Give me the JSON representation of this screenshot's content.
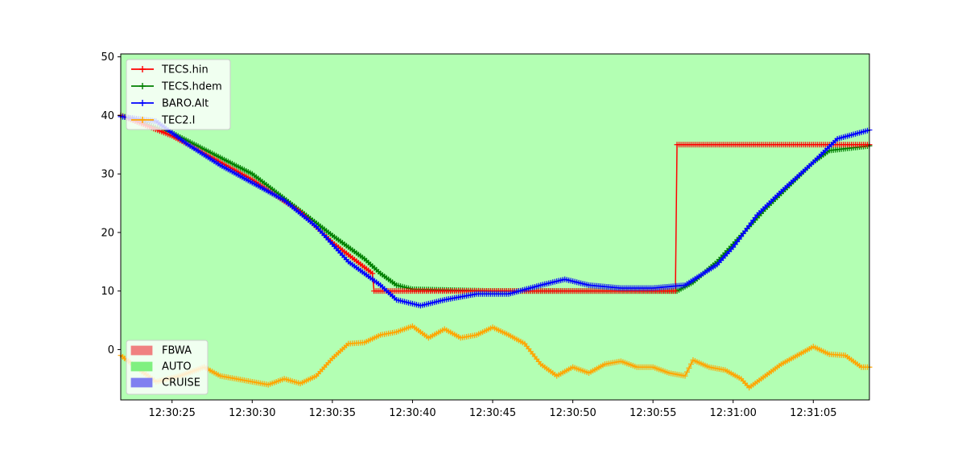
{
  "chart_data": {
    "type": "line",
    "title": "",
    "xlabel": "",
    "ylabel": "",
    "xlim": [
      "12:30:21.8",
      "12:31:08.5"
    ],
    "ylim": [
      -8.6,
      50.5
    ],
    "background_mode_band": {
      "mode": "AUTO",
      "color": "#b3ffb3"
    },
    "x_tick_labels": [
      "12:30:25",
      "12:30:30",
      "12:30:35",
      "12:30:40",
      "12:30:45",
      "12:30:50",
      "12:30:55",
      "12:31:00",
      "12:31:05"
    ],
    "y_tick_labels": [
      "0",
      "10",
      "20",
      "30",
      "40",
      "50"
    ],
    "grid": false,
    "legend_series": {
      "placement": "upper-left",
      "entries": [
        "TECS.hin",
        "TECS.hdem",
        "BARO.Alt",
        "TEC2.I"
      ]
    },
    "legend_modes": {
      "placement": "lower-left",
      "entries": [
        {
          "label": "FBWA",
          "color": "#f08080"
        },
        {
          "label": "AUTO",
          "color": "#80f080"
        },
        {
          "label": "CRUISE",
          "color": "#8080f0"
        }
      ]
    },
    "series": [
      {
        "name": "TECS.hin",
        "color": "#ff0000",
        "marker": "+",
        "points": [
          [
            "12:30:21.8",
            40.0
          ],
          [
            "12:30:25",
            36.5
          ],
          [
            "12:30:30",
            29.0
          ],
          [
            "12:30:33",
            23.5
          ],
          [
            "12:30:35",
            18.3
          ],
          [
            "12:30:37.5",
            13.0
          ],
          [
            "12:30:37.6",
            10.0
          ],
          [
            "12:30:45",
            10.0
          ],
          [
            "12:30:50",
            10.0
          ],
          [
            "12:30:56.4",
            10.0
          ],
          [
            "12:30:56.5",
            35.0
          ],
          [
            "12:31:00",
            35.0
          ],
          [
            "12:31:05",
            35.0
          ],
          [
            "12:31:08.5",
            35.0
          ]
        ]
      },
      {
        "name": "TECS.hdem",
        "color": "#008000",
        "marker": "+",
        "points": [
          [
            "12:30:21.8",
            40.0
          ],
          [
            "12:30:25",
            37.0
          ],
          [
            "12:30:30",
            30.0
          ],
          [
            "12:30:35",
            19.5
          ],
          [
            "12:30:37",
            15.5
          ],
          [
            "12:30:38",
            13.0
          ],
          [
            "12:30:39",
            11.0
          ],
          [
            "12:30:40",
            10.3
          ],
          [
            "12:30:45",
            10.0
          ],
          [
            "12:30:50",
            10.0
          ],
          [
            "12:30:56.5",
            10.0
          ],
          [
            "12:30:57.5",
            11.5
          ],
          [
            "12:30:59",
            15.0
          ],
          [
            "12:31:02",
            24.0
          ],
          [
            "12:31:05",
            32.0
          ],
          [
            "12:31:06",
            34.0
          ],
          [
            "12:31:08.5",
            34.8
          ]
        ]
      },
      {
        "name": "BARO.Alt",
        "color": "#0000ff",
        "marker": "+",
        "points": [
          [
            "12:30:21.8",
            39.8
          ],
          [
            "12:30:24",
            39.0
          ],
          [
            "12:30:26",
            35.0
          ],
          [
            "12:30:28",
            31.5
          ],
          [
            "12:30:30",
            28.5
          ],
          [
            "12:30:32",
            25.5
          ],
          [
            "12:30:34",
            21.0
          ],
          [
            "12:30:35",
            18.0
          ],
          [
            "12:30:36",
            15.0
          ],
          [
            "12:30:37",
            13.0
          ],
          [
            "12:30:38",
            11.0
          ],
          [
            "12:30:39",
            8.5
          ],
          [
            "12:30:40.5",
            7.5
          ],
          [
            "12:30:42",
            8.5
          ],
          [
            "12:30:44",
            9.5
          ],
          [
            "12:30:46",
            9.5
          ],
          [
            "12:30:48",
            11.0
          ],
          [
            "12:30:49.5",
            12.0
          ],
          [
            "12:30:51",
            11.0
          ],
          [
            "12:30:53",
            10.5
          ],
          [
            "12:30:55",
            10.5
          ],
          [
            "12:30:57",
            11.0
          ],
          [
            "12:30:59",
            14.5
          ],
          [
            "12:31:00",
            17.5
          ],
          [
            "12:31:01.5",
            23.0
          ],
          [
            "12:31:03",
            27.0
          ],
          [
            "12:31:05",
            32.0
          ],
          [
            "12:31:06.5",
            36.0
          ],
          [
            "12:31:08.5",
            37.5
          ]
        ]
      },
      {
        "name": "TEC2.I",
        "color": "#ffa500",
        "marker": "+",
        "points": [
          [
            "12:30:21.8",
            -1.0
          ],
          [
            "12:30:23",
            -3.5
          ],
          [
            "12:30:24",
            -5.5
          ],
          [
            "12:30:25.5",
            -4.5
          ],
          [
            "12:30:27",
            -3.0
          ],
          [
            "12:30:28",
            -4.5
          ],
          [
            "12:30:30",
            -5.5
          ],
          [
            "12:30:31",
            -6.0
          ],
          [
            "12:30:32",
            -5.0
          ],
          [
            "12:30:33",
            -5.8
          ],
          [
            "12:30:34",
            -4.5
          ],
          [
            "12:30:35",
            -1.5
          ],
          [
            "12:30:36",
            1.0
          ],
          [
            "12:30:37",
            1.2
          ],
          [
            "12:30:38",
            2.5
          ],
          [
            "12:30:39",
            3.0
          ],
          [
            "12:30:40",
            4.0
          ],
          [
            "12:30:41",
            2.0
          ],
          [
            "12:30:42",
            3.5
          ],
          [
            "12:30:43",
            2.0
          ],
          [
            "12:30:44",
            2.5
          ],
          [
            "12:30:45",
            3.8
          ],
          [
            "12:30:46",
            2.5
          ],
          [
            "12:30:47",
            1.0
          ],
          [
            "12:30:48",
            -2.5
          ],
          [
            "12:30:49",
            -4.5
          ],
          [
            "12:30:50",
            -3.0
          ],
          [
            "12:30:51",
            -4.0
          ],
          [
            "12:30:52",
            -2.5
          ],
          [
            "12:30:53",
            -2.0
          ],
          [
            "12:30:54",
            -3.0
          ],
          [
            "12:30:55",
            -3.0
          ],
          [
            "12:30:56",
            -4.0
          ],
          [
            "12:30:57",
            -4.5
          ],
          [
            "12:30:57.5",
            -1.8
          ],
          [
            "12:30:58.5",
            -3.0
          ],
          [
            "12:30:59.5",
            -3.5
          ],
          [
            "12:31:00.5",
            -5.0
          ],
          [
            "12:31:01",
            -6.5
          ],
          [
            "12:31:02",
            -4.5
          ],
          [
            "12:31:03",
            -2.5
          ],
          [
            "12:31:04",
            -1.0
          ],
          [
            "12:31:05",
            0.5
          ],
          [
            "12:31:06",
            -0.8
          ],
          [
            "12:31:07",
            -1.0
          ],
          [
            "12:31:08",
            -3.0
          ],
          [
            "12:31:08.5",
            -3.0
          ]
        ]
      }
    ]
  }
}
